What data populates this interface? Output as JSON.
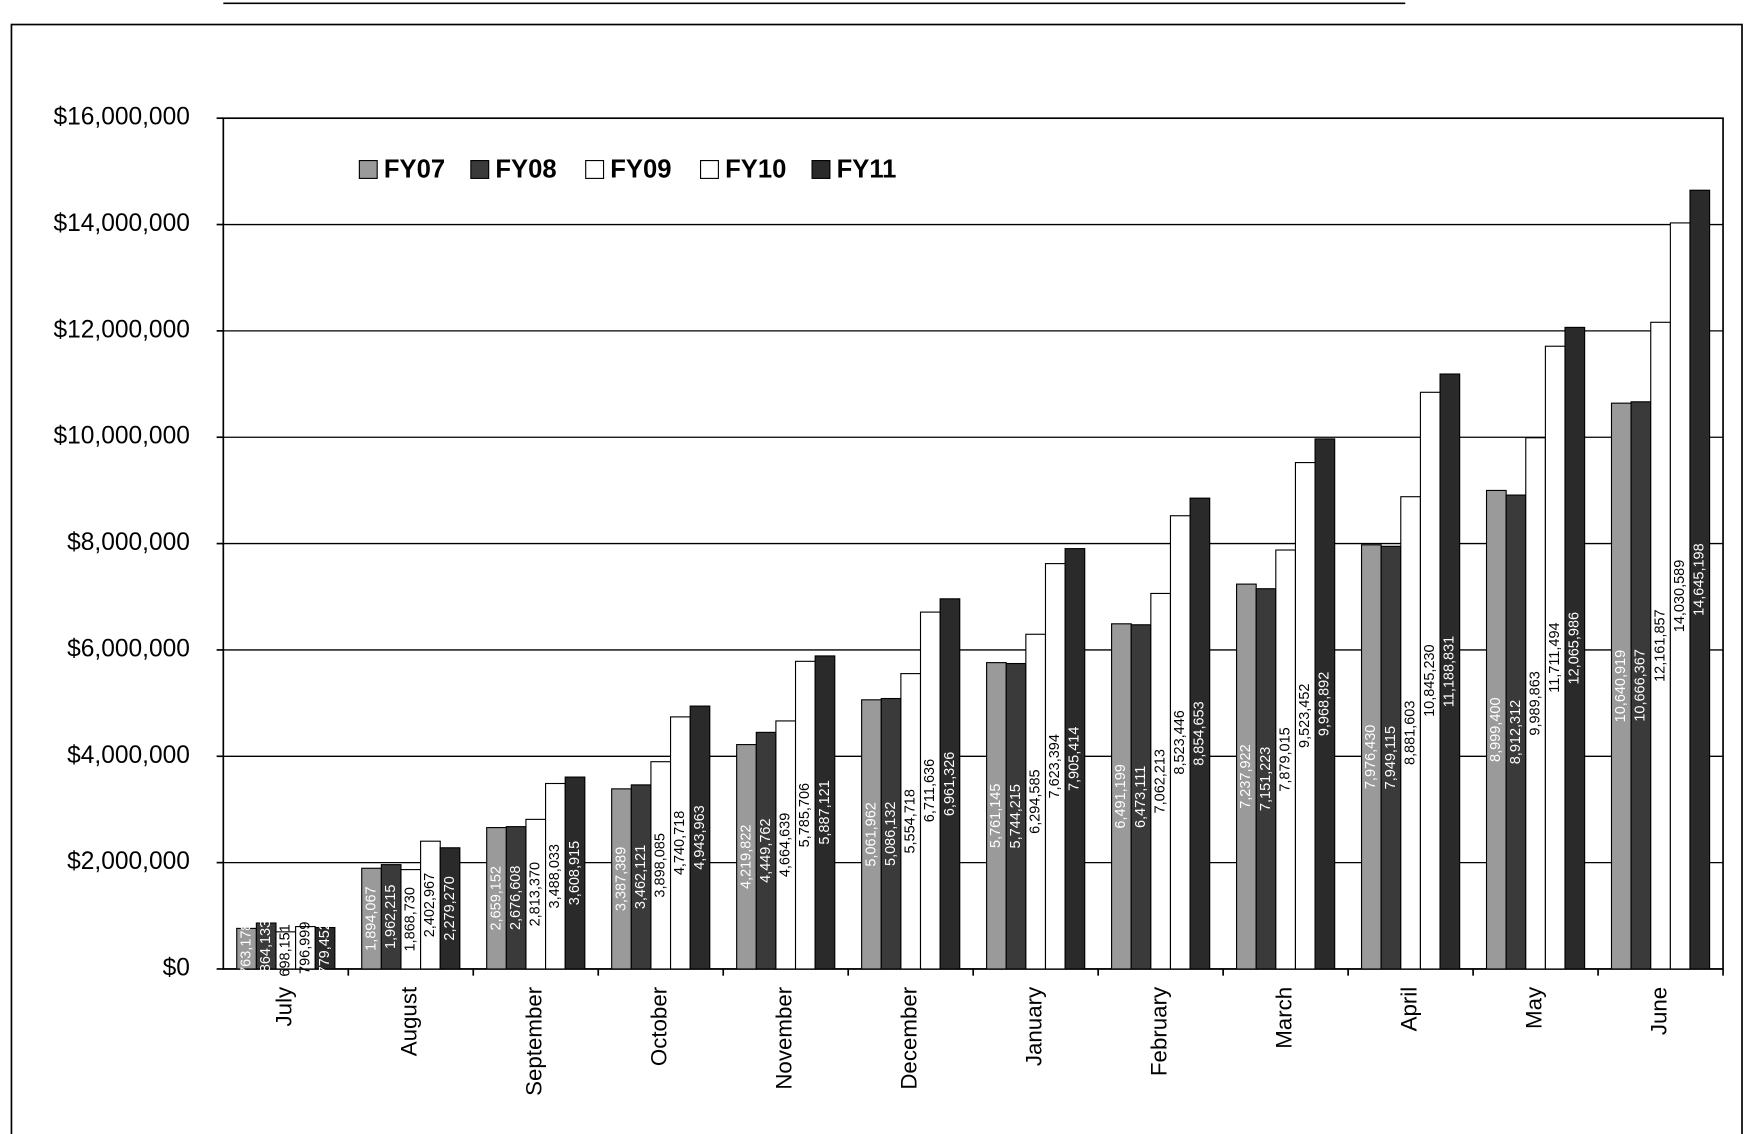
{
  "chart_data": {
    "type": "bar",
    "categories": [
      "July",
      "August",
      "September",
      "October",
      "November",
      "December",
      "January",
      "February",
      "March",
      "April",
      "May",
      "June"
    ],
    "series": [
      {
        "name": "FY07",
        "color": "#9a9a9a",
        "values": [
          763178,
          1894067,
          2659152,
          3387389,
          4219822,
          5061962,
          5761145,
          6491199,
          7237922,
          7976430,
          8999400,
          10640919
        ],
        "value_labels": [
          "763,178",
          "1,894,067",
          "2,659,152",
          "3,387,389",
          "4,219,822",
          "5,061,962",
          "5,761,145",
          "6,491,199",
          "7,237,922",
          "7,976,430",
          "8,999,400",
          "10,640,919"
        ]
      },
      {
        "name": "FY08",
        "color": "#3a3a3a",
        "values": [
          864133,
          1962215,
          2676608,
          3462121,
          4449762,
          5086132,
          5744215,
          6473111,
          7151223,
          7949115,
          8912312,
          10666367
        ],
        "value_labels": [
          "864,133",
          "1,962,215",
          "2,676,608",
          "3,462,121",
          "4,449,762",
          "5,086,132",
          "5,744,215",
          "6,473,111",
          "7,151,223",
          "7,949,115",
          "8,912,312",
          "10,666,367"
        ]
      },
      {
        "name": "FY09",
        "color": "#ffffff",
        "values": [
          698151,
          1868730,
          2813370,
          3898085,
          4664639,
          5554718,
          6294585,
          7062213,
          7879015,
          8881603,
          9989863,
          12161857
        ],
        "value_labels": [
          "698,151",
          "1,868,730",
          "2,813,370",
          "3,898,085",
          "4,664,639",
          "5,554,718",
          "6,294,585",
          "7,062,213",
          "7,879,015",
          "8,881,603",
          "9,989,863",
          "12,161,857"
        ]
      },
      {
        "name": "FY10",
        "color": "#ffffff",
        "values": [
          796999,
          2402967,
          3488033,
          4740718,
          5785706,
          6711636,
          7623394,
          8523446,
          9523452,
          10845230,
          11711494,
          14030589
        ],
        "value_labels": [
          "796,999",
          "2,402,967",
          "3,488,033",
          "4,740,718",
          "5,785,706",
          "6,711,636",
          "7,623,394",
          "8,523,446",
          "9,523,452",
          "10,845,230",
          "11,711,494",
          "14,030,589"
        ]
      },
      {
        "name": "FY11",
        "color": "#2a2a2a",
        "values": [
          779452,
          2279270,
          3608915,
          4943963,
          5887121,
          6961326,
          7905414,
          8854653,
          9968892,
          11188831,
          12065986,
          14645198
        ],
        "value_labels": [
          "779,452",
          "2,279,270",
          "3,608,915",
          "4,943,963",
          "5,887,121",
          "6,961,326",
          "7,905,414",
          "8,854,653",
          "9,968,892",
          "11,188,831",
          "12,065,986",
          "14,645,198"
        ]
      }
    ],
    "ylim": [
      0,
      16000000
    ],
    "yticks": [
      {
        "value": 0,
        "label": "$0"
      },
      {
        "value": 2000000,
        "label": "$2,000,000"
      },
      {
        "value": 4000000,
        "label": "$4,000,000"
      },
      {
        "value": 6000000,
        "label": "$6,000,000"
      },
      {
        "value": 8000000,
        "label": "$8,000,000"
      },
      {
        "value": 10000000,
        "label": "$10,000,000"
      },
      {
        "value": 12000000,
        "label": "$12,000,000"
      },
      {
        "value": 14000000,
        "label": "$14,000,000"
      },
      {
        "value": 16000000,
        "label": "$16,000,000"
      }
    ],
    "grid": true,
    "legend": "top-left"
  }
}
